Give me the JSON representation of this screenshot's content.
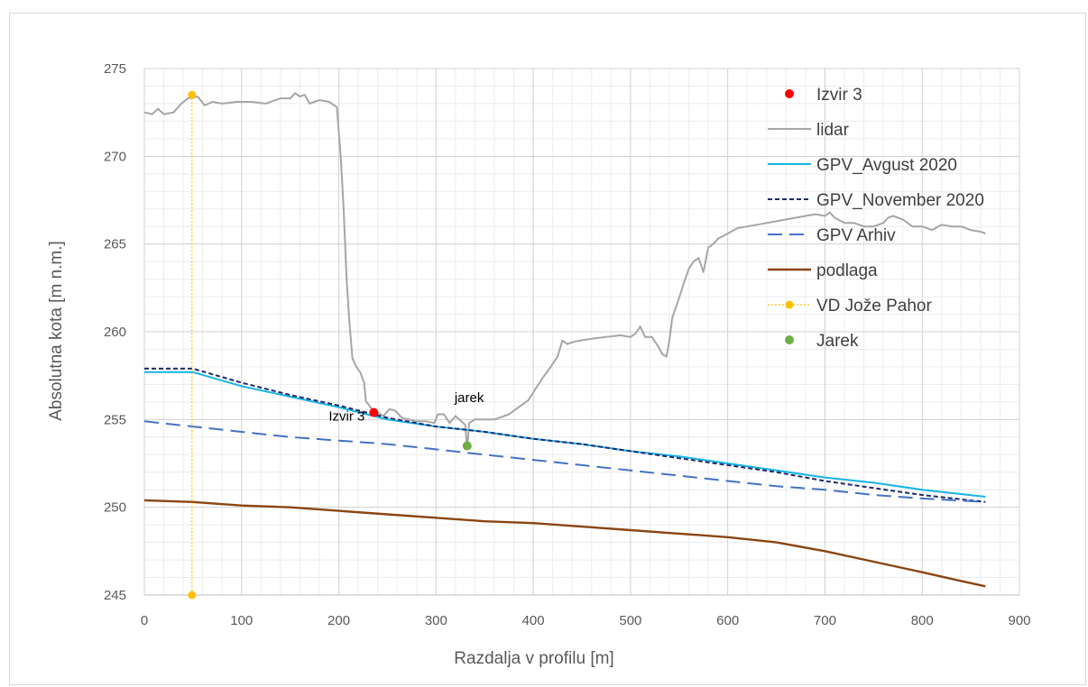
{
  "chart_data": {
    "type": "line",
    "xlabel": "Razdalja v profilu [m]",
    "ylabel": "Absolutna kota [m n.m.]",
    "xlim": [
      0,
      900
    ],
    "ylim": [
      245,
      275
    ],
    "xticks": [
      0,
      100,
      200,
      300,
      400,
      500,
      600,
      700,
      800,
      900
    ],
    "yticks": [
      245,
      250,
      255,
      260,
      265,
      270,
      275
    ],
    "grid": true,
    "legend_position": "right",
    "series": [
      {
        "name": "Izvir 3",
        "kind": "scatter",
        "color": "#ff0000",
        "points": [
          [
            236,
            255.4
          ]
        ]
      },
      {
        "name": "lidar",
        "kind": "line",
        "color": "#a6a6a6",
        "points": [
          [
            0,
            272.5
          ],
          [
            8,
            272.4
          ],
          [
            14,
            272.7
          ],
          [
            20,
            272.4
          ],
          [
            30,
            272.5
          ],
          [
            38,
            273.0
          ],
          [
            45,
            273.3
          ],
          [
            55,
            273.4
          ],
          [
            62,
            272.9
          ],
          [
            70,
            273.1
          ],
          [
            80,
            273.0
          ],
          [
            95,
            273.1
          ],
          [
            110,
            273.1
          ],
          [
            125,
            273.0
          ],
          [
            140,
            273.3
          ],
          [
            150,
            273.3
          ],
          [
            155,
            273.6
          ],
          [
            160,
            273.4
          ],
          [
            165,
            273.5
          ],
          [
            170,
            273.0
          ],
          [
            180,
            273.2
          ],
          [
            190,
            273.1
          ],
          [
            198,
            272.8
          ],
          [
            202,
            270.0
          ],
          [
            205,
            267.0
          ],
          [
            208,
            263.0
          ],
          [
            211,
            260.5
          ],
          [
            214,
            258.5
          ],
          [
            218,
            258.0
          ],
          [
            222,
            257.7
          ],
          [
            226,
            257.1
          ],
          [
            228,
            256.0
          ],
          [
            230,
            255.9
          ],
          [
            234,
            255.6
          ],
          [
            240,
            255.4
          ],
          [
            246,
            255.2
          ],
          [
            252,
            255.6
          ],
          [
            258,
            255.5
          ],
          [
            265,
            255.1
          ],
          [
            272,
            255.0
          ],
          [
            280,
            254.9
          ],
          [
            290,
            254.9
          ],
          [
            298,
            254.8
          ],
          [
            302,
            255.3
          ],
          [
            308,
            255.3
          ],
          [
            314,
            254.8
          ],
          [
            320,
            255.2
          ],
          [
            326,
            254.9
          ],
          [
            330,
            254.7
          ],
          [
            332,
            253.3
          ],
          [
            334,
            254.8
          ],
          [
            340,
            255.0
          ],
          [
            350,
            255.0
          ],
          [
            360,
            255.0
          ],
          [
            375,
            255.3
          ],
          [
            385,
            255.7
          ],
          [
            395,
            256.1
          ],
          [
            403,
            256.8
          ],
          [
            410,
            257.4
          ],
          [
            418,
            258.0
          ],
          [
            425,
            258.6
          ],
          [
            430,
            259.5
          ],
          [
            435,
            259.3
          ],
          [
            440,
            259.4
          ],
          [
            448,
            259.5
          ],
          [
            460,
            259.6
          ],
          [
            475,
            259.7
          ],
          [
            490,
            259.8
          ],
          [
            500,
            259.7
          ],
          [
            505,
            259.9
          ],
          [
            510,
            260.3
          ],
          [
            515,
            259.7
          ],
          [
            522,
            259.7
          ],
          [
            528,
            259.2
          ],
          [
            533,
            258.7
          ],
          [
            537,
            258.6
          ],
          [
            540,
            259.5
          ],
          [
            543,
            260.8
          ],
          [
            548,
            261.6
          ],
          [
            555,
            262.8
          ],
          [
            560,
            263.6
          ],
          [
            565,
            264.0
          ],
          [
            570,
            264.2
          ],
          [
            575,
            263.4
          ],
          [
            580,
            264.8
          ],
          [
            585,
            265.0
          ],
          [
            590,
            265.3
          ],
          [
            600,
            265.6
          ],
          [
            610,
            265.9
          ],
          [
            620,
            266.0
          ],
          [
            630,
            266.1
          ],
          [
            640,
            266.2
          ],
          [
            650,
            266.3
          ],
          [
            660,
            266.4
          ],
          [
            670,
            266.5
          ],
          [
            680,
            266.6
          ],
          [
            690,
            266.7
          ],
          [
            700,
            266.6
          ],
          [
            705,
            266.8
          ],
          [
            710,
            266.5
          ],
          [
            720,
            266.2
          ],
          [
            730,
            266.2
          ],
          [
            740,
            266.0
          ],
          [
            750,
            266.0
          ],
          [
            760,
            266.2
          ],
          [
            765,
            266.5
          ],
          [
            770,
            266.6
          ],
          [
            780,
            266.4
          ],
          [
            790,
            266.0
          ],
          [
            800,
            266.0
          ],
          [
            810,
            265.8
          ],
          [
            820,
            266.1
          ],
          [
            830,
            266.0
          ],
          [
            840,
            266.0
          ],
          [
            850,
            265.8
          ],
          [
            860,
            265.7
          ],
          [
            865,
            265.6
          ]
        ]
      },
      {
        "name": "GPV_Avgust 2020",
        "kind": "line",
        "color": "#17b4e6",
        "points": [
          [
            0,
            257.7
          ],
          [
            50,
            257.7
          ],
          [
            100,
            256.9
          ],
          [
            150,
            256.3
          ],
          [
            200,
            255.7
          ],
          [
            250,
            255.0
          ],
          [
            300,
            254.6
          ],
          [
            350,
            254.3
          ],
          [
            400,
            253.9
          ],
          [
            450,
            253.6
          ],
          [
            500,
            253.2
          ],
          [
            550,
            252.9
          ],
          [
            600,
            252.5
          ],
          [
            650,
            252.1
          ],
          [
            700,
            251.7
          ],
          [
            750,
            251.4
          ],
          [
            800,
            251.0
          ],
          [
            865,
            250.6
          ]
        ]
      },
      {
        "name": "GPV_November 2020",
        "kind": "line",
        "dash": "short",
        "color": "#1f2a6e",
        "points": [
          [
            0,
            257.9
          ],
          [
            50,
            257.9
          ],
          [
            100,
            257.1
          ],
          [
            150,
            256.4
          ],
          [
            200,
            255.8
          ],
          [
            250,
            255.1
          ],
          [
            300,
            254.6
          ],
          [
            350,
            254.3
          ],
          [
            400,
            253.9
          ],
          [
            450,
            253.6
          ],
          [
            500,
            253.2
          ],
          [
            550,
            252.8
          ],
          [
            600,
            252.4
          ],
          [
            650,
            252.0
          ],
          [
            700,
            251.5
          ],
          [
            750,
            251.1
          ],
          [
            800,
            250.7
          ],
          [
            865,
            250.3
          ]
        ]
      },
      {
        "name": "GPV Arhiv",
        "kind": "line",
        "dash": "long",
        "color": "#4472c4",
        "points": [
          [
            0,
            254.9
          ],
          [
            50,
            254.6
          ],
          [
            100,
            254.3
          ],
          [
            150,
            254.0
          ],
          [
            200,
            253.8
          ],
          [
            250,
            253.6
          ],
          [
            300,
            253.3
          ],
          [
            350,
            253.0
          ],
          [
            400,
            252.7
          ],
          [
            450,
            252.4
          ],
          [
            500,
            252.1
          ],
          [
            550,
            251.8
          ],
          [
            600,
            251.5
          ],
          [
            650,
            251.2
          ],
          [
            700,
            251.0
          ],
          [
            750,
            250.7
          ],
          [
            800,
            250.5
          ],
          [
            865,
            250.3
          ]
        ]
      },
      {
        "name": "podlaga",
        "kind": "line",
        "color": "#8b4513",
        "points": [
          [
            0,
            250.4
          ],
          [
            50,
            250.3
          ],
          [
            100,
            250.1
          ],
          [
            150,
            250.0
          ],
          [
            200,
            249.8
          ],
          [
            250,
            249.6
          ],
          [
            300,
            249.4
          ],
          [
            350,
            249.2
          ],
          [
            400,
            249.1
          ],
          [
            450,
            248.9
          ],
          [
            500,
            248.7
          ],
          [
            550,
            248.5
          ],
          [
            600,
            248.3
          ],
          [
            650,
            248.0
          ],
          [
            700,
            247.5
          ],
          [
            750,
            246.9
          ],
          [
            800,
            246.3
          ],
          [
            840,
            245.8
          ],
          [
            865,
            245.5
          ]
        ]
      },
      {
        "name": "VD Jože Pahor",
        "kind": "line-marker",
        "dash": "dotted",
        "color": "#ffc000",
        "points": [
          [
            49,
            273.5
          ],
          [
            49,
            245
          ]
        ]
      },
      {
        "name": "Jarek",
        "kind": "scatter",
        "color": "#70ad47",
        "points": [
          [
            332,
            253.5
          ]
        ]
      }
    ],
    "annotations": [
      {
        "text": "Izvir 3",
        "x": 236,
        "y": 255.4
      },
      {
        "text": "jarek",
        "x": 332,
        "y": 256.0
      }
    ]
  }
}
